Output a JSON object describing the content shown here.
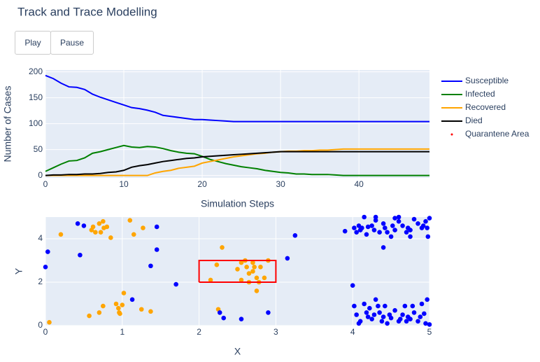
{
  "title": "Track and Trace Modelling",
  "buttons": [
    "Play",
    "Pause"
  ],
  "chart_data": [
    {
      "type": "line",
      "xlabel": "Simulation Steps",
      "ylabel": "Number of Cases",
      "x": [
        0,
        1,
        2,
        3,
        4,
        5,
        6,
        7,
        8,
        9,
        10,
        11,
        12,
        13,
        14,
        15,
        16,
        17,
        18,
        19,
        20,
        21,
        22,
        23,
        24,
        25,
        26,
        27,
        28,
        29,
        30,
        31,
        32,
        33,
        34,
        35,
        36,
        37,
        38,
        39,
        40,
        41,
        42,
        43,
        44,
        45,
        46,
        47,
        48,
        49
      ],
      "xlim": [
        0,
        49
      ],
      "xticks": [
        0,
        10,
        20,
        30,
        40
      ],
      "ylim": [
        -4.5,
        203.5
      ],
      "yticks": [
        0,
        50,
        100,
        150,
        200
      ],
      "grid": true,
      "series": [
        {
          "name": "Susceptible",
          "color": "#0000ff",
          "values": [
            193,
            187,
            178,
            171,
            170,
            166,
            157,
            151,
            146,
            141,
            136,
            131,
            129,
            126,
            122,
            116,
            114,
            112,
            110,
            108,
            108,
            107,
            106,
            105,
            104,
            104,
            104,
            104,
            104,
            104,
            104,
            104,
            104,
            104,
            104,
            104,
            104,
            104,
            104,
            104,
            104,
            104,
            104,
            104,
            104,
            104,
            104,
            104,
            104,
            104
          ]
        },
        {
          "name": "Infected",
          "color": "#008000",
          "values": [
            8,
            15,
            22,
            28,
            29,
            34,
            43,
            46,
            50,
            54,
            58,
            55,
            54,
            56,
            55,
            52,
            48,
            45,
            43,
            42,
            37,
            31,
            27,
            23,
            20,
            17,
            15,
            13,
            10,
            8,
            6,
            5,
            3,
            3,
            2,
            2,
            2,
            1,
            0,
            0,
            0,
            0,
            0,
            0,
            0,
            0,
            0,
            0,
            0,
            0
          ]
        },
        {
          "name": "Recovered",
          "color": "#ffa500",
          "values": [
            0,
            0,
            0,
            0,
            0,
            0,
            0,
            0,
            0,
            0,
            0,
            0,
            0,
            0,
            5,
            8,
            10,
            14,
            16,
            18,
            24,
            27,
            30,
            33,
            36,
            38,
            40,
            42,
            43,
            45,
            46,
            47,
            47,
            48,
            48,
            49,
            49,
            50,
            51,
            51,
            51,
            51,
            51,
            51,
            51,
            51,
            51,
            51,
            51,
            51
          ]
        },
        {
          "name": "Died",
          "color": "#000000",
          "values": [
            0,
            1,
            1,
            2,
            2,
            3,
            3,
            4,
            6,
            7,
            10,
            16,
            19,
            21,
            24,
            27,
            29,
            31,
            33,
            34,
            36,
            37,
            38,
            39,
            40,
            41,
            42,
            43,
            44,
            45,
            46,
            46,
            46,
            46,
            46,
            46,
            46,
            46,
            46,
            46,
            46,
            46,
            46,
            46,
            46,
            46,
            46,
            46,
            46,
            46
          ]
        }
      ]
    },
    {
      "type": "scatter",
      "xlabel": "X",
      "ylabel": "Y",
      "xlim": [
        0,
        5
      ],
      "xticks": [
        0,
        1,
        2,
        3,
        4,
        5
      ],
      "ylim": [
        0,
        5
      ],
      "yticks": [
        0,
        2,
        4
      ],
      "grid": true,
      "series": [
        {
          "name": "Quarantene Area",
          "color": "#ff0000",
          "x": [
            2,
            3,
            3,
            2,
            2
          ],
          "y": [
            2,
            2,
            3,
            3,
            2
          ]
        }
      ],
      "points": [
        {
          "color": "#ffa500",
          "x": [
            0.05,
            0.2,
            0.6,
            0.62,
            0.65,
            0.7,
            0.75,
            0.76,
            0.8,
            0.72,
            0.85,
            1.1,
            1.15,
            1.27,
            0.57,
            0.7,
            0.75,
            0.92,
            0.95,
            0.97,
            1.0,
            1.02,
            0.96,
            1.25,
            1.37,
            2.23,
            2.3,
            2.15,
            2.25,
            2.5,
            2.55,
            2.6,
            2.62,
            2.65,
            2.7,
            2.72,
            2.75,
            2.78,
            2.8,
            2.85,
            2.65,
            2.75,
            2.55,
            2.7,
            2.9
          ],
          "y": [
            0.15,
            4.2,
            4.4,
            4.55,
            4.3,
            4.7,
            4.8,
            4.5,
            4.55,
            4.3,
            4.05,
            4.85,
            4.2,
            4.5,
            0.45,
            0.6,
            0.9,
            1.0,
            0.8,
            0.55,
            0.95,
            1.5,
            0.6,
            0.75,
            0.65,
            2.8,
            3.6,
            2.1,
            0.75,
            2.6,
            2.9,
            3.0,
            2.7,
            2.4,
            2.5,
            2.7,
            2.2,
            2.0,
            2.7,
            2.2,
            2.0,
            1.6,
            2.1,
            2.9,
            3.0
          ]
        },
        {
          "color": "#0000ff",
          "x": [
            0.0,
            0.03,
            0.45,
            0.5,
            0.42,
            1.45,
            1.45,
            1.37,
            1.7,
            1.13,
            2.27,
            2.32,
            2.55,
            2.9,
            3.15,
            3.25,
            4.0,
            3.9,
            4.4,
            4.02,
            4.05,
            4.08,
            4.1,
            4.12,
            4.18,
            4.2,
            4.25,
            4.28,
            4.3,
            4.3,
            4.35,
            4.4,
            4.42,
            4.45,
            4.5,
            4.52,
            4.55,
            4.6,
            4.65,
            4.7,
            4.72,
            4.75,
            4.8,
            4.85,
            4.9,
            4.92,
            4.95,
            4.97,
            5.0,
            4.98,
            4.6,
            4.55,
            4.75,
            4.15,
            4.02,
            4.05,
            4.08,
            4.1,
            4.15,
            4.18,
            4.2,
            4.22,
            4.25,
            4.28,
            4.3,
            4.33,
            4.35,
            4.38,
            4.4,
            4.42,
            4.45,
            4.48,
            4.5,
            4.55,
            4.6,
            4.62,
            4.65,
            4.68,
            4.7,
            4.72,
            4.75,
            4.78,
            4.8,
            4.85,
            4.88,
            4.9,
            4.93,
            4.95,
            4.97,
            5.0
          ],
          "y": [
            2.7,
            3.4,
            3.25,
            4.6,
            4.7,
            4.55,
            3.5,
            2.75,
            1.9,
            1.2,
            0.6,
            0.35,
            0.3,
            0.6,
            3.1,
            4.15,
            1.85,
            4.35,
            3.6,
            4.5,
            4.3,
            4.6,
            4.4,
            4.5,
            4.2,
            4.55,
            4.6,
            4.4,
            4.85,
            5.0,
            4.3,
            4.7,
            4.5,
            4.3,
            4.1,
            4.6,
            4.4,
            4.8,
            4.6,
            4.3,
            4.5,
            4.4,
            4.9,
            4.7,
            4.5,
            4.6,
            4.8,
            4.5,
            4.95,
            4.1,
            5.0,
            4.95,
            4.1,
            5.0,
            0.9,
            0.5,
            0.1,
            0.2,
            1.0,
            0.6,
            0.4,
            0.8,
            0.3,
            0.5,
            1.2,
            0.9,
            0.6,
            0.2,
            0.4,
            0.9,
            0.1,
            0.5,
            0.35,
            0.7,
            0.2,
            0.3,
            0.5,
            0.9,
            0.2,
            0.4,
            0.3,
            0.9,
            0.6,
            0.2,
            0.4,
            1.0,
            0.55,
            0.1,
            1.2,
            0.05
          ]
        }
      ]
    }
  ]
}
